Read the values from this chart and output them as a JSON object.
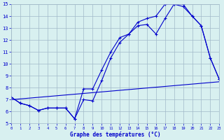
{
  "line1_x": [
    0,
    1,
    2,
    3,
    4,
    5,
    6,
    7,
    8,
    9,
    10,
    11,
    12,
    13,
    14,
    15,
    16,
    17,
    18,
    19,
    20,
    21,
    22,
    23
  ],
  "line1_y": [
    7.2,
    6.7,
    6.5,
    6.1,
    6.3,
    6.3,
    6.3,
    5.4,
    7.0,
    6.9,
    8.6,
    10.5,
    11.8,
    12.5,
    13.5,
    13.8,
    14.0,
    15.0,
    15.0,
    15.0,
    14.0,
    13.2,
    10.5,
    8.7
  ],
  "line2_x": [
    0,
    1,
    2,
    3,
    4,
    5,
    6,
    7,
    8,
    9,
    10,
    11,
    12,
    13,
    14,
    15,
    16,
    17,
    18,
    19,
    20,
    21,
    22,
    23
  ],
  "line2_y": [
    7.2,
    6.7,
    6.5,
    6.1,
    6.3,
    6.3,
    6.3,
    5.4,
    7.9,
    7.9,
    9.5,
    11.0,
    12.2,
    12.5,
    13.2,
    13.3,
    12.5,
    13.8,
    15.0,
    14.8,
    14.0,
    13.2,
    10.5,
    8.7
  ],
  "line3_x": [
    0,
    23
  ],
  "line3_y": [
    7.0,
    8.5
  ],
  "line_color": "#0000cc",
  "background_color": "#d8f0f0",
  "grid_color": "#a0b8c8",
  "xlabel": "Graphe des températures (°C)",
  "ylim": [
    5,
    15
  ],
  "xlim": [
    0,
    23
  ],
  "yticks": [
    5,
    6,
    7,
    8,
    9,
    10,
    11,
    12,
    13,
    14,
    15
  ],
  "xticks": [
    0,
    1,
    2,
    3,
    4,
    5,
    6,
    7,
    8,
    9,
    10,
    11,
    12,
    13,
    14,
    15,
    16,
    17,
    18,
    19,
    20,
    21,
    22,
    23
  ],
  "figwidth": 3.2,
  "figheight": 2.0,
  "dpi": 100
}
